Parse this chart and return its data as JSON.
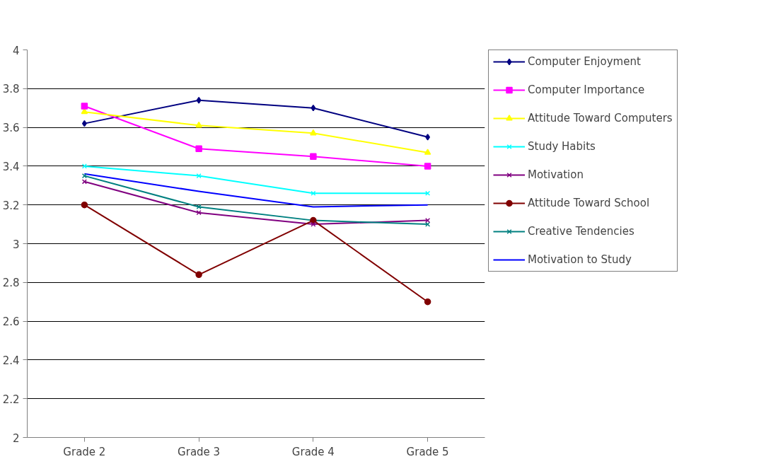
{
  "chart_data": {
    "type": "line",
    "categories": [
      "Grade 2",
      "Grade 3",
      "Grade 4",
      "Grade 5"
    ],
    "ylim": [
      2,
      4
    ],
    "yticks": [
      2,
      2.2,
      2.4,
      2.6,
      2.8,
      3,
      3.2,
      3.4,
      3.6,
      3.8,
      4
    ],
    "grid": "y",
    "legend": "right",
    "series": [
      {
        "name": "Computer Enjoyment",
        "color": "#000080",
        "marker": "diamond",
        "values": [
          3.62,
          3.74,
          3.7,
          3.55
        ]
      },
      {
        "name": "Computer Importance",
        "color": "#ff00ff",
        "marker": "square",
        "values": [
          3.71,
          3.49,
          3.45,
          3.4
        ]
      },
      {
        "name": "Attitude Toward Computers",
        "color": "#ffff00",
        "marker": "triangle",
        "values": [
          3.68,
          3.61,
          3.57,
          3.47
        ]
      },
      {
        "name": "Study Habits",
        "color": "#00ffff",
        "marker": "cross",
        "values": [
          3.4,
          3.35,
          3.26,
          3.26
        ]
      },
      {
        "name": "Motivation",
        "color": "#800080",
        "marker": "cross",
        "values": [
          3.32,
          3.16,
          3.1,
          3.12
        ]
      },
      {
        "name": "Attitude Toward School",
        "color": "#800000",
        "marker": "circle",
        "values": [
          3.2,
          2.84,
          3.12,
          2.7
        ]
      },
      {
        "name": "Creative Tendencies",
        "color": "#008080",
        "marker": "cross",
        "values": [
          3.35,
          3.19,
          3.12,
          3.1
        ]
      },
      {
        "name": "Motivation to Study",
        "color": "#0000ff",
        "values": [
          3.36,
          3.27,
          3.19,
          3.2
        ]
      }
    ]
  }
}
